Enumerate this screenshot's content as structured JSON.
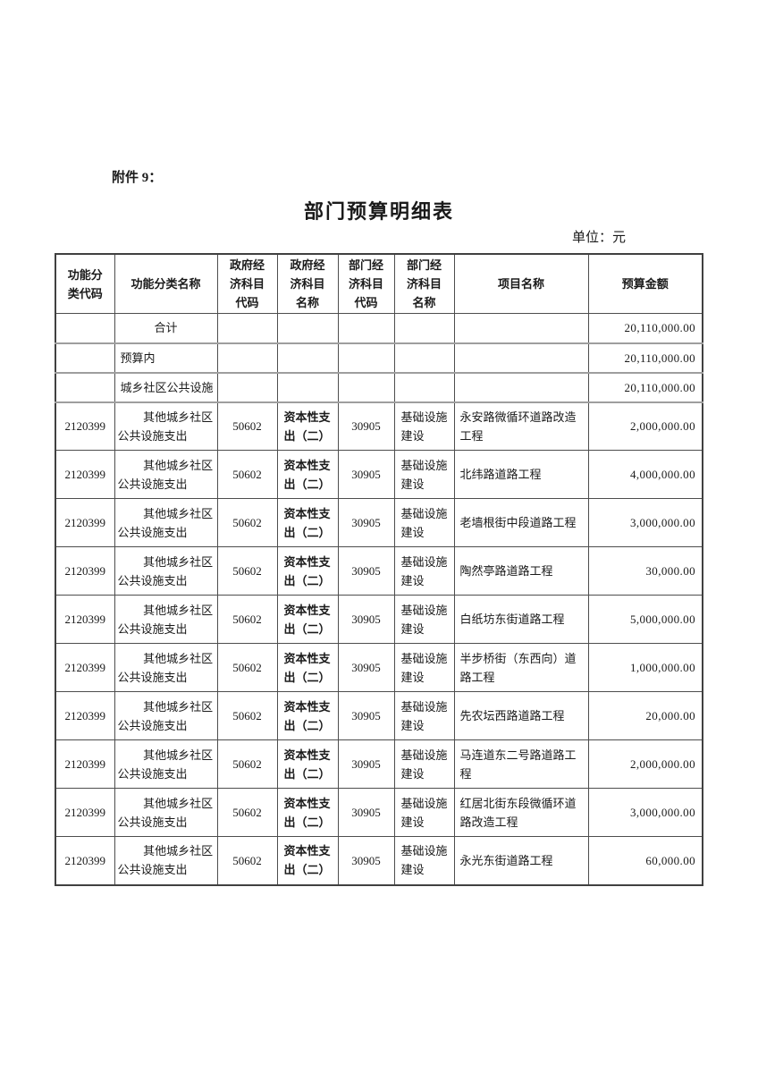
{
  "page": {
    "attachment_label": "附件 9：",
    "title": "部门预算明细表",
    "unit_label": "单位：元"
  },
  "table": {
    "headers": [
      "功能分\n类代码",
      "功能分类名称",
      "政府经\n济科目\n代码",
      "政府经\n济科目\n名称",
      "部门经\n济科目\n代码",
      "部门经\n济科目\n名称",
      "项目名称",
      "预算金额"
    ],
    "summary_rows": [
      {
        "name": "合计",
        "amount": "20,110,000.00"
      },
      {
        "name": "预算内",
        "amount": "20,110,000.00"
      },
      {
        "name": "城乡社区公共设施",
        "amount": "20,110,000.00"
      }
    ],
    "detail_rows": [
      {
        "func_code": "2120399",
        "func_name": "其他城乡社区\n公共设施支出",
        "gov_code": "50602",
        "gov_name": "资本性支\n出（二）",
        "dept_code": "30905",
        "dept_name": "基础设施\n建设",
        "project": "永安路微循环道路改造\n工程",
        "amount": "2,000,000.00"
      },
      {
        "func_code": "2120399",
        "func_name": "其他城乡社区\n公共设施支出",
        "gov_code": "50602",
        "gov_name": "资本性支\n出（二）",
        "dept_code": "30905",
        "dept_name": "基础设施\n建设",
        "project": "北纬路道路工程",
        "amount": "4,000,000.00"
      },
      {
        "func_code": "2120399",
        "func_name": "其他城乡社区\n公共设施支出",
        "gov_code": "50602",
        "gov_name": "资本性支\n出（二）",
        "dept_code": "30905",
        "dept_name": "基础设施\n建设",
        "project": "老墙根街中段道路工程",
        "amount": "3,000,000.00"
      },
      {
        "func_code": "2120399",
        "func_name": "其他城乡社区\n公共设施支出",
        "gov_code": "50602",
        "gov_name": "资本性支\n出（二）",
        "dept_code": "30905",
        "dept_name": "基础设施\n建设",
        "project": "陶然亭路道路工程",
        "amount": "30,000.00"
      },
      {
        "func_code": "2120399",
        "func_name": "其他城乡社区\n公共设施支出",
        "gov_code": "50602",
        "gov_name": "资本性支\n出（二）",
        "dept_code": "30905",
        "dept_name": "基础设施\n建设",
        "project": "白纸坊东街道路工程",
        "amount": "5,000,000.00"
      },
      {
        "func_code": "2120399",
        "func_name": "其他城乡社区\n公共设施支出",
        "gov_code": "50602",
        "gov_name": "资本性支\n出（二）",
        "dept_code": "30905",
        "dept_name": "基础设施\n建设",
        "project": "半步桥街（东西向）道\n路工程",
        "amount": "1,000,000.00"
      },
      {
        "func_code": "2120399",
        "func_name": "其他城乡社区\n公共设施支出",
        "gov_code": "50602",
        "gov_name": "资本性支\n出（二）",
        "dept_code": "30905",
        "dept_name": "基础设施\n建设",
        "project": "先农坛西路道路工程",
        "amount": "20,000.00"
      },
      {
        "func_code": "2120399",
        "func_name": "其他城乡社区\n公共设施支出",
        "gov_code": "50602",
        "gov_name": "资本性支\n出（二）",
        "dept_code": "30905",
        "dept_name": "基础设施\n建设",
        "project": "马连道东二号路道路工\n程",
        "amount": "2,000,000.00"
      },
      {
        "func_code": "2120399",
        "func_name": "其他城乡社区\n公共设施支出",
        "gov_code": "50602",
        "gov_name": "资本性支\n出（二）",
        "dept_code": "30905",
        "dept_name": "基础设施\n建设",
        "project": "红居北街东段微循环道\n路改造工程",
        "amount": "3,000,000.00"
      },
      {
        "func_code": "2120399",
        "func_name": "其他城乡社区\n公共设施支出",
        "gov_code": "50602",
        "gov_name": "资本性支\n出（二）",
        "dept_code": "30905",
        "dept_name": "基础设施\n建设",
        "project": "永光东街道路工程",
        "amount": "60,000.00"
      }
    ]
  }
}
